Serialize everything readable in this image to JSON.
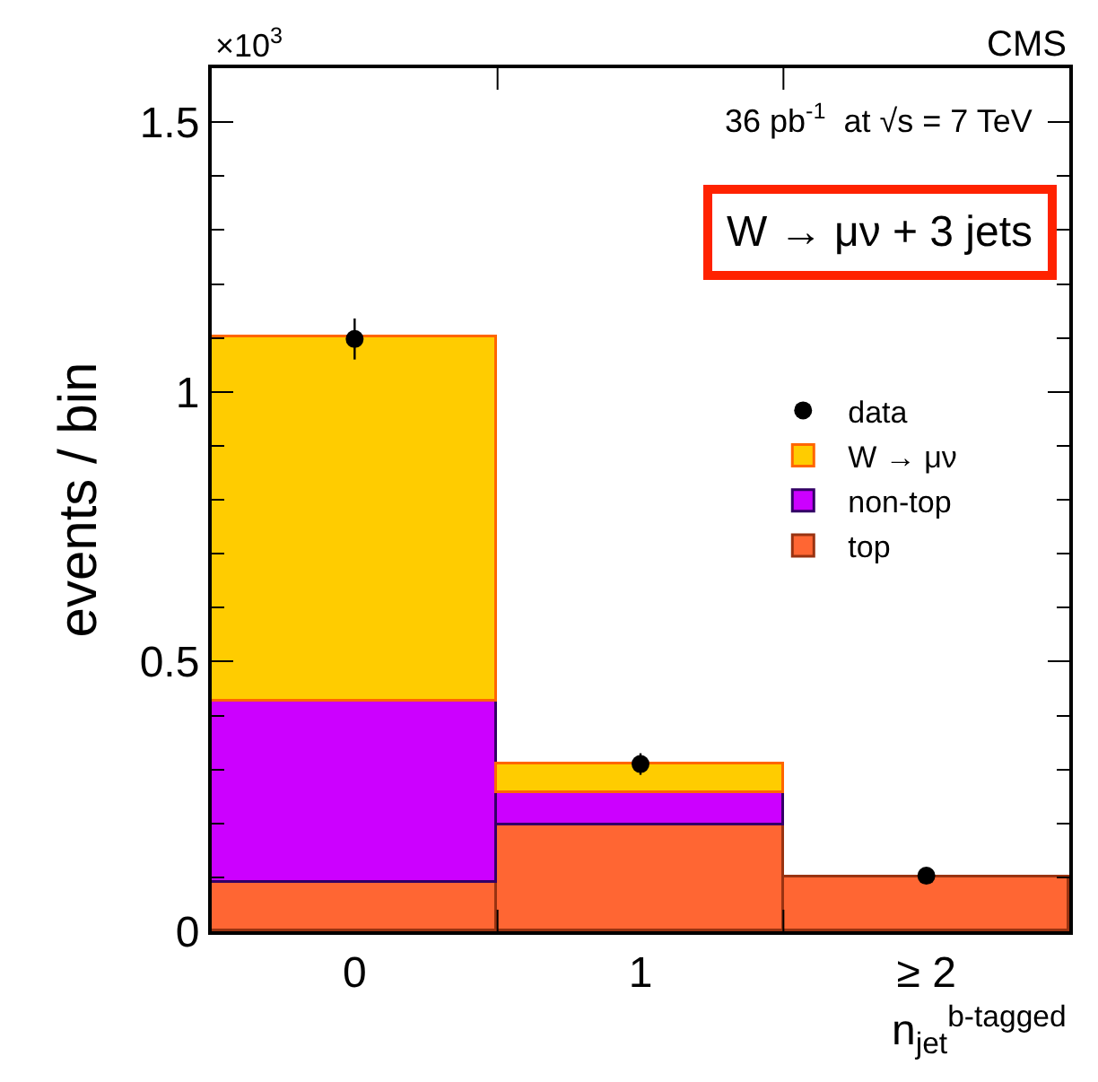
{
  "chart_data": {
    "type": "bar",
    "stacked": true,
    "title": "CMS",
    "ylabel": "events / bin",
    "xlabel": "n$_{jet}$$^{b-tagged}$",
    "categories": [
      "0",
      "1",
      "≥ 2"
    ],
    "series": [
      {
        "name": "top",
        "color": "#ff6633",
        "values": [
          0.09,
          0.196,
          0.101
        ]
      },
      {
        "name": "non-top",
        "color": "#cc00ff",
        "values": [
          0.337,
          0.061,
          null
        ]
      },
      {
        "name": "W → μν",
        "color": "#ffcc00",
        "values": [
          0.673,
          0.053,
          null
        ]
      },
      {
        "name": "data",
        "type": "scatter",
        "color": "#000000",
        "x": [
          "0",
          "1",
          "≥ 2"
        ],
        "values": [
          1.098,
          0.31,
          0.103
        ],
        "errors": [
          0.038,
          0.02,
          0.01
        ]
      }
    ],
    "ylim": [
      0,
      1.6
    ],
    "yticks": [
      0,
      0.5,
      1,
      1.5
    ],
    "legend": "top right",
    "marker": "circle",
    "annotations": [
      "×10$^{3}$",
      "36 pb$^{-1}$  at √s = 7 TeV",
      "W → μν + 3 jets"
    ]
  }
}
